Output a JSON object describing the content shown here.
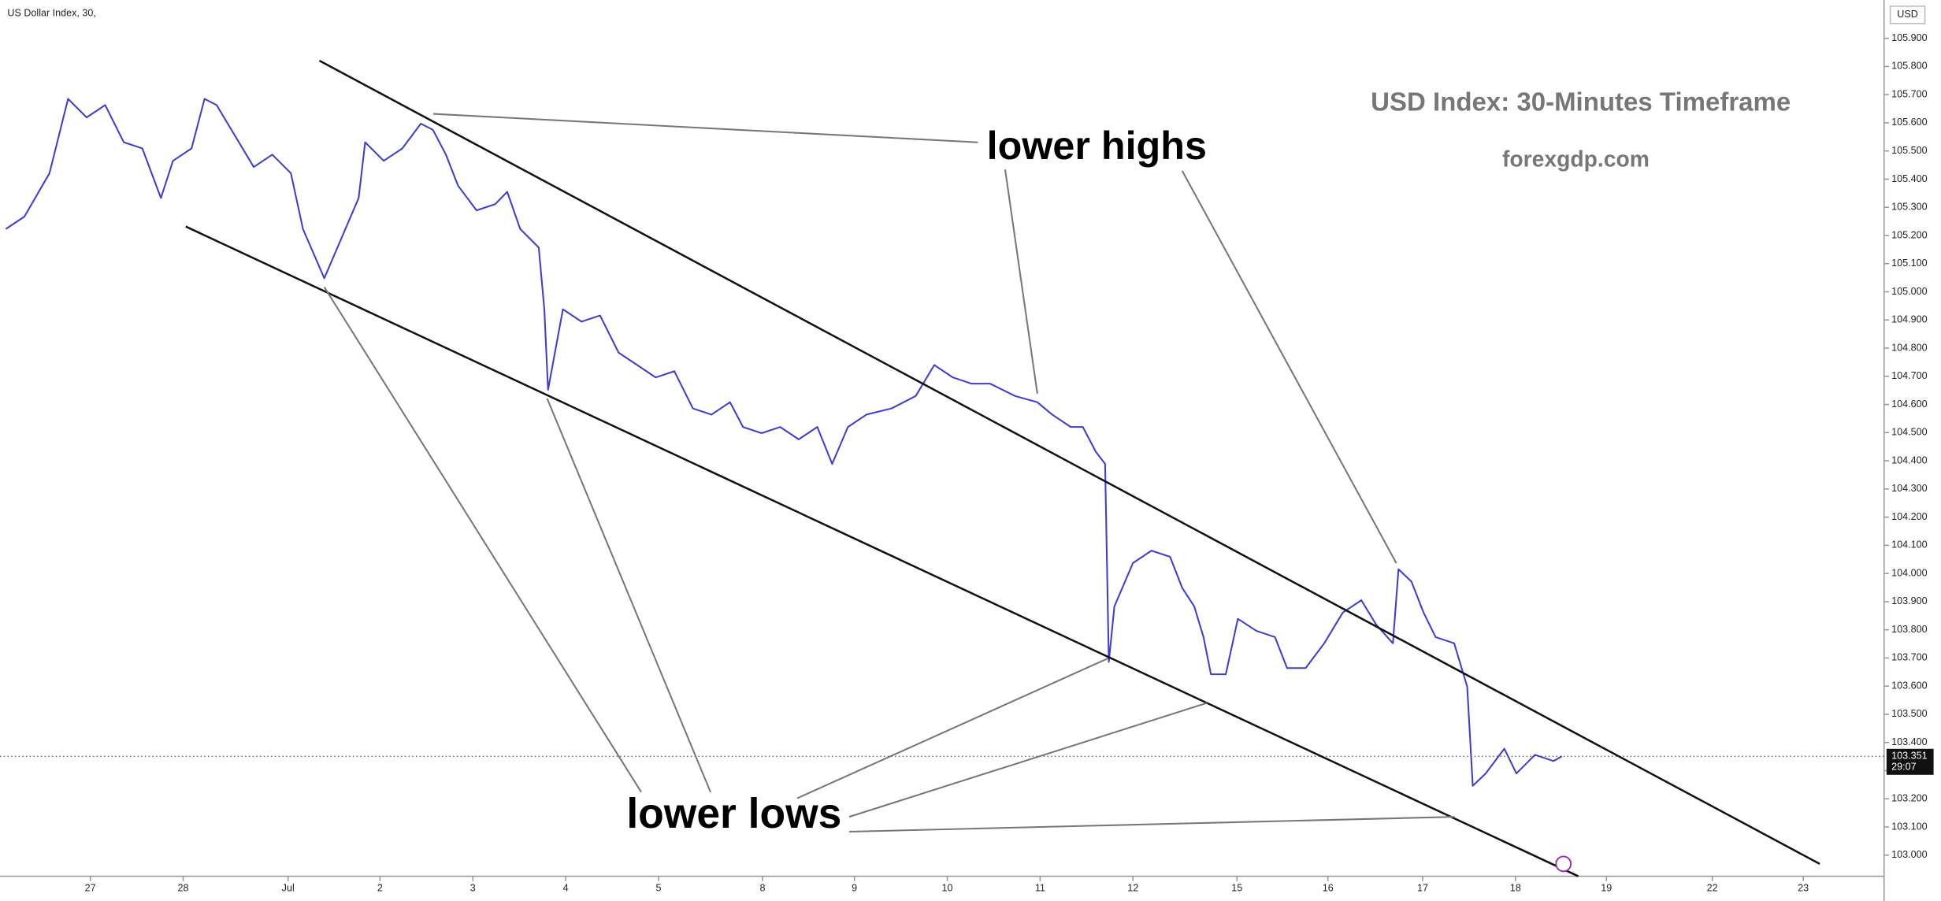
{
  "chart_data": {
    "type": "line",
    "instrument": "US Dollar Index, 30,",
    "currency": "USD",
    "title": "USD Index: 30-Minutes Timeframe",
    "subtitle": "forexgdp.com",
    "annotations": [
      "lower highs",
      "lower lows"
    ],
    "x": [
      -0.91,
      -0.71,
      -0.44,
      -0.24,
      -0.04,
      0.16,
      0.36,
      0.56,
      0.76,
      0.89,
      1.09,
      1.23,
      1.36,
      1.56,
      1.76,
      1.96,
      2.16,
      2.29,
      2.52,
      2.69,
      2.89,
      2.96,
      3.16,
      3.36,
      3.56,
      3.69,
      3.83,
      3.96,
      4.16,
      4.36,
      4.49,
      4.63,
      4.83,
      4.89,
      4.93,
      5.09,
      5.29,
      5.49,
      5.69,
      5.89,
      6.09,
      6.29,
      6.49,
      6.69,
      6.89,
      7.03,
      7.23,
      7.43,
      7.63,
      7.83,
      7.99,
      8.16,
      8.36,
      8.63,
      8.89,
      9.09,
      9.29,
      9.49,
      9.69,
      9.96,
      10.2,
      10.36,
      10.56,
      10.69,
      10.83,
      10.93,
      10.97,
      11.03,
      11.23,
      11.43,
      11.63,
      11.76,
      11.89,
      11.99,
      12.07,
      12.23,
      12.36,
      12.56,
      12.76,
      12.89,
      13.09,
      13.29,
      13.49,
      13.69,
      13.85,
      14.03,
      14.09,
      14.23,
      14.36,
      14.49,
      14.69,
      14.83,
      14.89,
      15.03,
      15.23,
      15.36,
      15.56,
      15.76,
      15.85
    ],
    "series": [
      {
        "color": "#3d3dd0",
        "values": [
          105.223,
          105.267,
          105.421,
          105.685,
          105.619,
          105.663,
          105.531,
          105.509,
          105.333,
          105.465,
          105.509,
          105.685,
          105.663,
          105.553,
          105.443,
          105.487,
          105.421,
          105.223,
          105.048,
          105.179,
          105.333,
          105.531,
          105.465,
          105.509,
          105.597,
          105.575,
          105.487,
          105.377,
          105.289,
          105.311,
          105.355,
          105.223,
          105.157,
          104.938,
          104.652,
          104.938,
          104.894,
          104.916,
          104.784,
          104.74,
          104.696,
          104.718,
          104.586,
          104.564,
          104.608,
          104.52,
          104.498,
          104.52,
          104.476,
          104.52,
          104.389,
          104.52,
          104.564,
          104.586,
          104.63,
          104.74,
          104.696,
          104.674,
          104.674,
          104.63,
          104.608,
          104.564,
          104.52,
          104.52,
          104.432,
          104.389,
          103.686,
          103.883,
          104.037,
          104.081,
          104.059,
          103.949,
          103.883,
          103.774,
          103.642,
          103.642,
          103.839,
          103.796,
          103.774,
          103.664,
          103.664,
          103.752,
          103.861,
          103.905,
          103.818,
          103.752,
          104.015,
          103.971,
          103.861,
          103.774,
          103.752,
          103.598,
          103.246,
          103.29,
          103.378,
          103.29,
          103.356,
          103.334,
          103.351
        ]
      }
    ],
    "last_price": 103.351,
    "countdown": "29:07",
    "xlim": [
      -0.973,
      19.32
    ],
    "xticks": [
      {
        "value": 0,
        "label": "27"
      },
      {
        "value": 1,
        "label": "28"
      },
      {
        "value": 2.13,
        "label": "Jul"
      },
      {
        "value": 3.12,
        "label": "2"
      },
      {
        "value": 4.12,
        "label": "3"
      },
      {
        "value": 5.12,
        "label": "4"
      },
      {
        "value": 6.12,
        "label": "5"
      },
      {
        "value": 7.24,
        "label": "8"
      },
      {
        "value": 8.23,
        "label": "9"
      },
      {
        "value": 9.23,
        "label": "10"
      },
      {
        "value": 10.23,
        "label": "11"
      },
      {
        "value": 11.23,
        "label": "12"
      },
      {
        "value": 12.35,
        "label": "15"
      },
      {
        "value": 13.33,
        "label": "16"
      },
      {
        "value": 14.35,
        "label": "17"
      },
      {
        "value": 15.35,
        "label": "18"
      },
      {
        "value": 16.33,
        "label": "19"
      },
      {
        "value": 17.47,
        "label": "22"
      },
      {
        "value": 18.45,
        "label": "23"
      }
    ],
    "ylim": [
      102.925,
      106.036
    ],
    "yticks": [
      {
        "value": 103,
        "label": "103.000"
      },
      {
        "value": 103.1,
        "label": "103.100"
      },
      {
        "value": 103.2,
        "label": "103.200"
      },
      {
        "value": 103.3,
        "label": "103.300"
      },
      {
        "value": 103.4,
        "label": "103.400"
      },
      {
        "value": 103.5,
        "label": "103.500"
      },
      {
        "value": 103.6,
        "label": "103.600"
      },
      {
        "value": 103.7,
        "label": "103.700"
      },
      {
        "value": 103.8,
        "label": "103.800"
      },
      {
        "value": 103.9,
        "label": "103.900"
      },
      {
        "value": 104,
        "label": "104.000"
      },
      {
        "value": 104.1,
        "label": "104.100"
      },
      {
        "value": 104.2,
        "label": "104.200"
      },
      {
        "value": 104.3,
        "label": "104.300"
      },
      {
        "value": 104.4,
        "label": "104.400"
      },
      {
        "value": 104.5,
        "label": "104.500"
      },
      {
        "value": 104.6,
        "label": "104.600"
      },
      {
        "value": 104.7,
        "label": "104.700"
      },
      {
        "value": 104.8,
        "label": "104.800"
      },
      {
        "value": 104.9,
        "label": "104.900"
      },
      {
        "value": 105,
        "label": "105.000"
      },
      {
        "value": 105.1,
        "label": "105.100"
      },
      {
        "value": 105.2,
        "label": "105.200"
      },
      {
        "value": 105.3,
        "label": "105.300"
      },
      {
        "value": 105.4,
        "label": "105.400"
      },
      {
        "value": 105.5,
        "label": "105.500"
      },
      {
        "value": 105.6,
        "label": "105.600"
      },
      {
        "value": 105.7,
        "label": "105.700"
      },
      {
        "value": 105.8,
        "label": "105.800"
      },
      {
        "value": 105.9,
        "label": "105.900"
      }
    ]
  }
}
